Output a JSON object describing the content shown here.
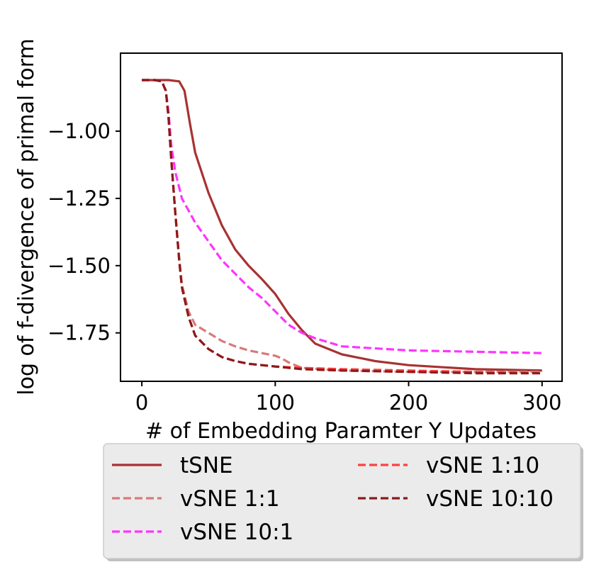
{
  "chart_data": {
    "type": "line",
    "title": "",
    "xlabel": "# of Embedding Paramter Y Updates",
    "ylabel": "log of f-divergence of primal form",
    "xlim": [
      -16,
      315
    ],
    "ylim": [
      -1.93,
      -0.71
    ],
    "xticks": [
      0,
      100,
      200,
      300
    ],
    "xtick_labels": [
      "0",
      "100",
      "200",
      "300"
    ],
    "yticks": [
      -1.0,
      -1.25,
      -1.5,
      -1.75
    ],
    "ytick_labels": [
      "−1.00",
      "−1.25",
      "−1.50",
      "−1.75"
    ],
    "grid": false,
    "legend_position": "below",
    "series": [
      {
        "name": "tSNE",
        "color": "#a83232",
        "dash": "solid",
        "x": [
          0,
          10,
          20,
          28,
          32,
          36,
          40,
          50,
          60,
          70,
          80,
          90,
          100,
          110,
          120,
          130,
          150,
          175,
          200,
          250,
          300
        ],
        "y": [
          -0.81,
          -0.81,
          -0.81,
          -0.815,
          -0.85,
          -0.97,
          -1.08,
          -1.23,
          -1.35,
          -1.44,
          -1.5,
          -1.55,
          -1.605,
          -1.68,
          -1.74,
          -1.79,
          -1.83,
          -1.855,
          -1.87,
          -1.885,
          -1.89
        ]
      },
      {
        "name": "vSNE 1:1",
        "color": "#d9797a",
        "dash": "dashed",
        "x": [
          0,
          10,
          15,
          18,
          20,
          22,
          25,
          28,
          30,
          35,
          40,
          50,
          60,
          70,
          80,
          90,
          100,
          105,
          110,
          120,
          150,
          200,
          250,
          300
        ],
        "y": [
          -0.81,
          -0.81,
          -0.815,
          -0.85,
          -0.95,
          -1.1,
          -1.3,
          -1.47,
          -1.57,
          -1.67,
          -1.72,
          -1.75,
          -1.78,
          -1.8,
          -1.815,
          -1.825,
          -1.835,
          -1.845,
          -1.86,
          -1.88,
          -1.89,
          -1.895,
          -1.895,
          -1.895
        ]
      },
      {
        "name": "vSNE 10:1",
        "color": "#ff33ff",
        "dash": "dashed",
        "x": [
          0,
          10,
          15,
          18,
          20,
          22,
          25,
          30,
          40,
          50,
          60,
          70,
          80,
          90,
          100,
          110,
          120,
          130,
          150,
          200,
          250,
          300
        ],
        "y": [
          -0.81,
          -0.81,
          -0.815,
          -0.85,
          -0.93,
          -1.05,
          -1.15,
          -1.25,
          -1.34,
          -1.41,
          -1.48,
          -1.53,
          -1.58,
          -1.62,
          -1.67,
          -1.72,
          -1.75,
          -1.77,
          -1.8,
          -1.815,
          -1.82,
          -1.825
        ]
      },
      {
        "name": "vSNE 1:10",
        "color": "#ff4040",
        "dash": "dashed",
        "x": [
          0,
          10,
          15,
          18,
          20,
          22,
          25,
          28,
          30,
          35,
          40,
          50,
          60,
          70,
          80,
          100,
          120,
          150,
          200,
          250,
          300
        ],
        "y": [
          -0.81,
          -0.81,
          -0.815,
          -0.85,
          -0.95,
          -1.1,
          -1.3,
          -1.48,
          -1.58,
          -1.69,
          -1.76,
          -1.81,
          -1.84,
          -1.855,
          -1.865,
          -1.875,
          -1.88,
          -1.885,
          -1.89,
          -1.895,
          -1.9
        ]
      },
      {
        "name": "vSNE 10:10",
        "color": "#8b1a1a",
        "dash": "dashed",
        "x": [
          0,
          10,
          15,
          18,
          20,
          22,
          25,
          28,
          30,
          35,
          40,
          50,
          60,
          70,
          80,
          100,
          120,
          150,
          200,
          250,
          300
        ],
        "y": [
          -0.81,
          -0.81,
          -0.815,
          -0.85,
          -0.95,
          -1.1,
          -1.3,
          -1.48,
          -1.58,
          -1.69,
          -1.76,
          -1.81,
          -1.84,
          -1.855,
          -1.865,
          -1.875,
          -1.885,
          -1.89,
          -1.895,
          -1.9,
          -1.9
        ]
      }
    ],
    "legend_columns": [
      [
        "tSNE",
        "vSNE 1:1",
        "vSNE 10:1"
      ],
      [
        "vSNE 1:10",
        "vSNE 10:10"
      ]
    ]
  }
}
